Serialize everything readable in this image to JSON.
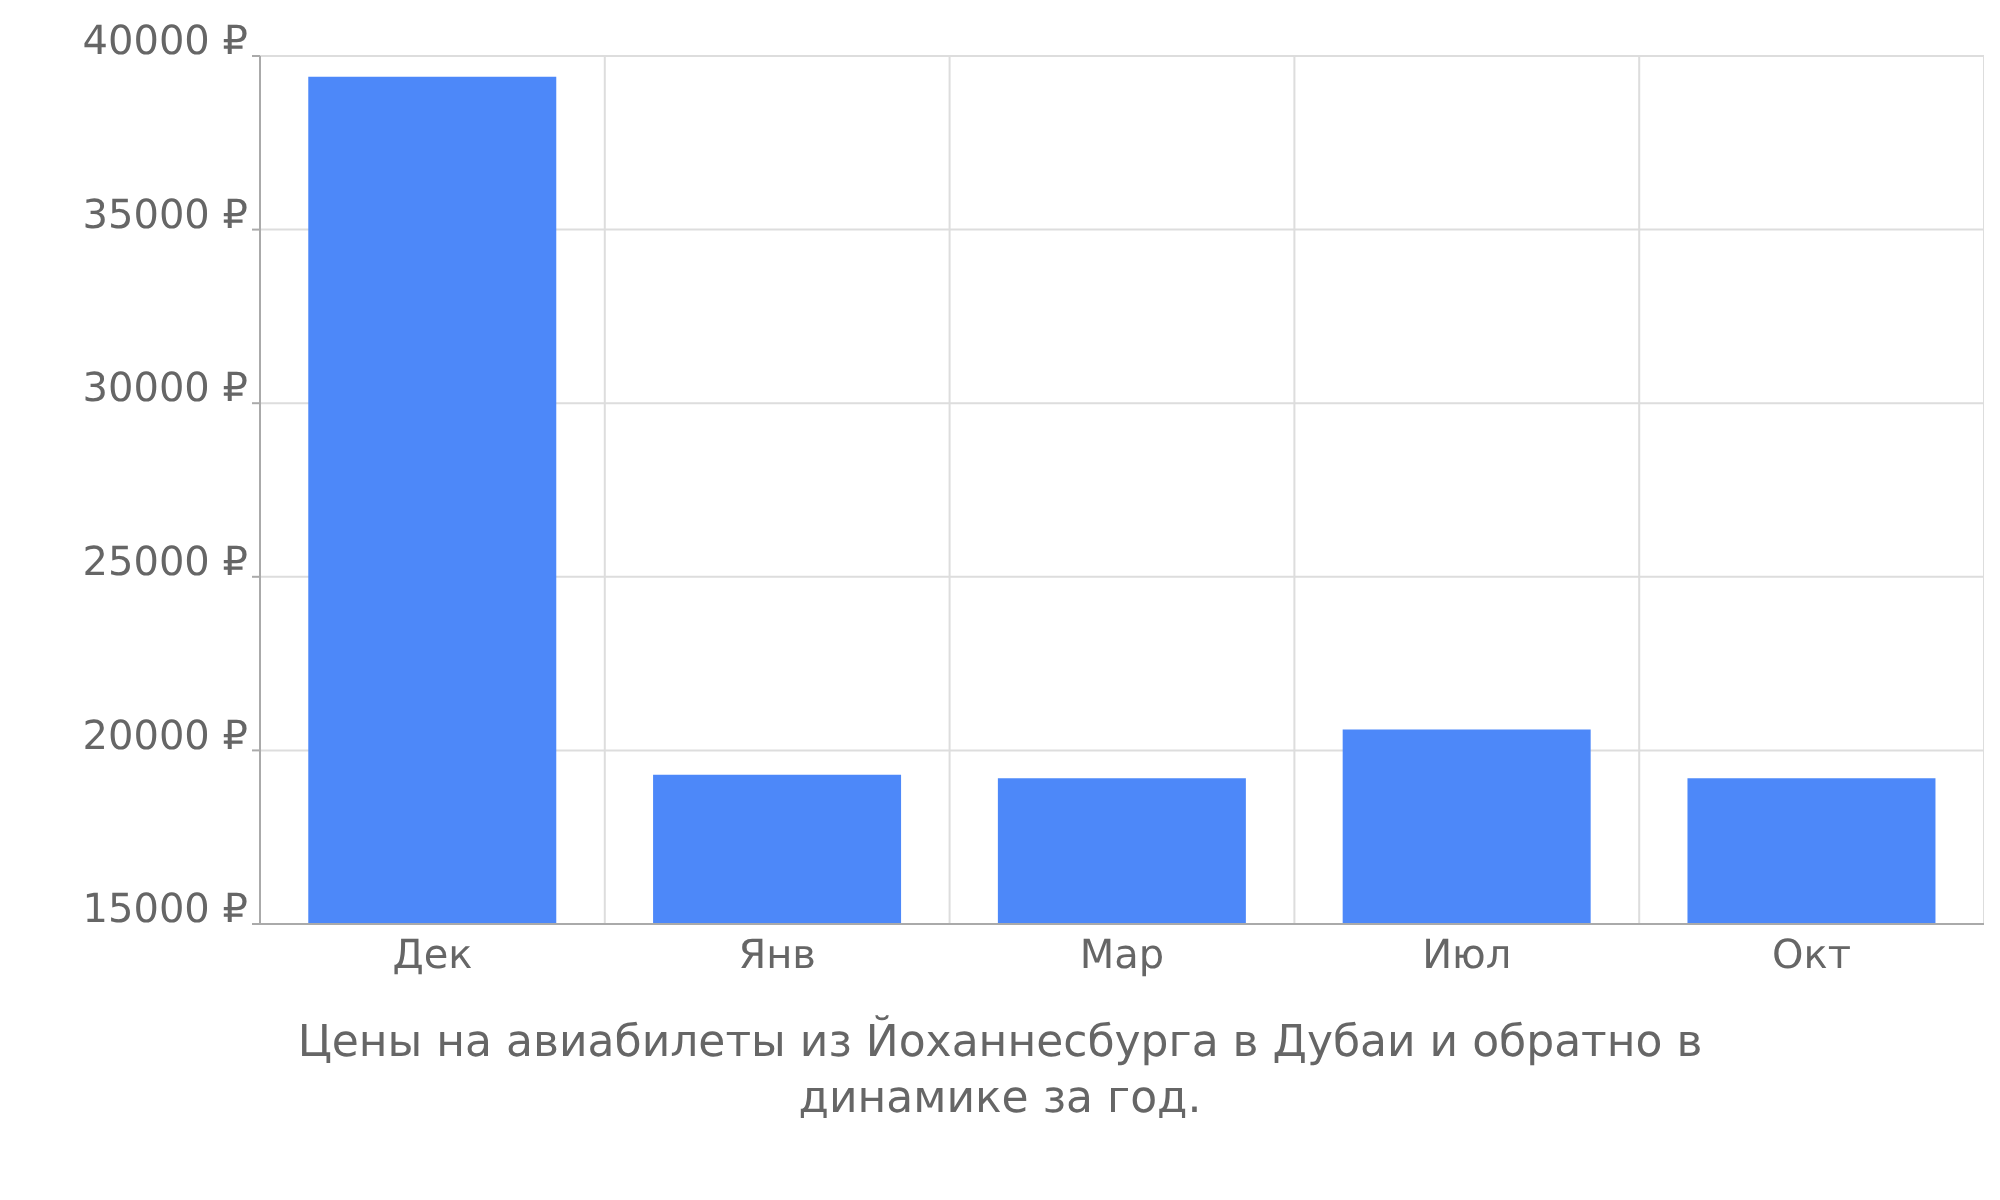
{
  "chart_data": {
    "type": "bar",
    "title": "Цены на авиабилеты из Йоханнесбурга в Дубаи и обратно в динамике за год.",
    "categories": [
      "Дек",
      "Янв",
      "Мар",
      "Июл",
      "Окт"
    ],
    "values": [
      39400,
      19300,
      19200,
      20600,
      19200
    ],
    "color": "#4d88f9",
    "ylim": [
      15000,
      40000
    ],
    "yticks": [
      {
        "value": 15000,
        "label": "15000 ₽"
      },
      {
        "value": 20000,
        "label": "20000 ₽"
      },
      {
        "value": 25000,
        "label": "25000 ₽"
      },
      {
        "value": 30000,
        "label": "30000 ₽"
      },
      {
        "value": 35000,
        "label": "35000 ₽"
      },
      {
        "value": 40000,
        "label": "40000 ₽"
      }
    ],
    "grid": true
  }
}
